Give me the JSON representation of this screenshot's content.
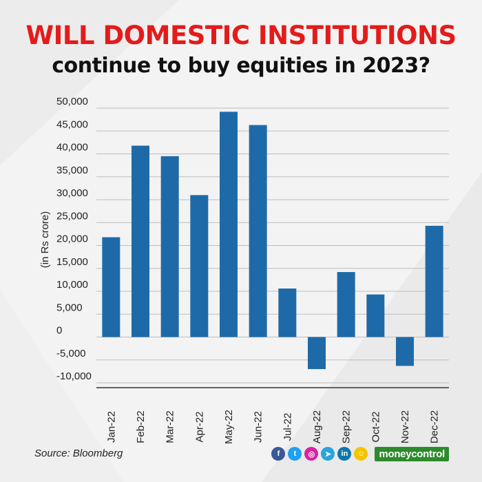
{
  "header": {
    "title_line1": "WILL DOMESTIC INSTITUTIONS",
    "title_line2": "continue to buy equities in 2023?"
  },
  "chart_data": {
    "type": "bar",
    "title": "WILL DOMESTIC INSTITUTIONS continue to buy equities in 2023?",
    "xlabel": "",
    "ylabel": "(in Rs crore)",
    "categories": [
      "Jan-22",
      "Feb-22",
      "Mar-22",
      "Apr-22",
      "May-22",
      "Jun-22",
      "Jul-22",
      "Aug-22",
      "Sep-22",
      "Oct-22",
      "Nov-22",
      "Dec-22"
    ],
    "values": [
      21800,
      41800,
      39500,
      31000,
      49200,
      46300,
      10600,
      -7000,
      14200,
      9300,
      -6300,
      24300
    ],
    "yticks": [
      "50,000",
      "45,000",
      "40,000",
      "35,000",
      "30,000",
      "25,000",
      "20,000",
      "15,000",
      "10,000",
      "5,000",
      "0",
      "-5,000",
      "-10,000"
    ],
    "ytick_values": [
      50000,
      45000,
      40000,
      35000,
      30000,
      25000,
      20000,
      15000,
      10000,
      5000,
      0,
      -5000,
      -10000
    ],
    "ylim": [
      -10000,
      50000
    ],
    "grid": true,
    "bar_color": "#1e6aa8"
  },
  "footer": {
    "source": "Source: Bloomberg",
    "brand": "moneycontrol",
    "social_icons": [
      {
        "name": "facebook-icon",
        "glyph": "f",
        "color": "#3b5998"
      },
      {
        "name": "twitter-icon",
        "glyph": "t",
        "color": "#1da1f2"
      },
      {
        "name": "instagram-icon",
        "glyph": "◎",
        "color": "#d6249f"
      },
      {
        "name": "telegram-icon",
        "glyph": "➤",
        "color": "#2aa3df"
      },
      {
        "name": "linkedin-icon",
        "glyph": "in",
        "color": "#0e76a8"
      },
      {
        "name": "snapchat-icon",
        "glyph": "☺",
        "color": "#f5c400"
      }
    ]
  }
}
